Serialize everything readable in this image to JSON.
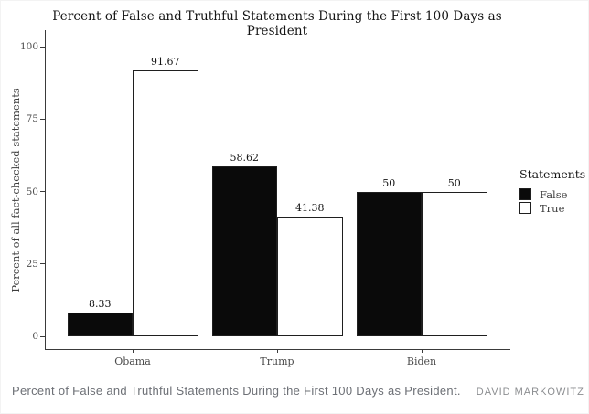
{
  "page": {
    "caption": "Percent of False and Truthful Statements During the First 100 Days as President.",
    "credit": "DAVID MARKOWITZ"
  },
  "chart_data": {
    "type": "bar",
    "title": "Percent of False and Truthful Statements During the First 100 Days as President",
    "xlabel": "",
    "ylabel": "Percent of all fact-checked statements",
    "categories": [
      "Obama",
      "Trump",
      "Biden"
    ],
    "series": [
      {
        "name": "False",
        "color": "#0a0a0a",
        "values": [
          8.33,
          58.62,
          50
        ]
      },
      {
        "name": "True",
        "color": "#ffffff",
        "values": [
          91.67,
          41.38,
          50
        ]
      }
    ],
    "yticks": [
      0,
      25,
      50,
      75,
      100
    ],
    "ylim": [
      0,
      100
    ],
    "grid": false,
    "legend": {
      "title": "Statements",
      "entries": [
        "False",
        "True"
      ],
      "position": "right"
    },
    "colors": {
      "false_bar": "#0a0a0a",
      "true_bar": "#ffffff",
      "bar_border": "#1f1f1f",
      "axis": "#3a3a3a",
      "text": "#151515",
      "caption": "#6d7076",
      "credit": "#8b8d90"
    }
  }
}
